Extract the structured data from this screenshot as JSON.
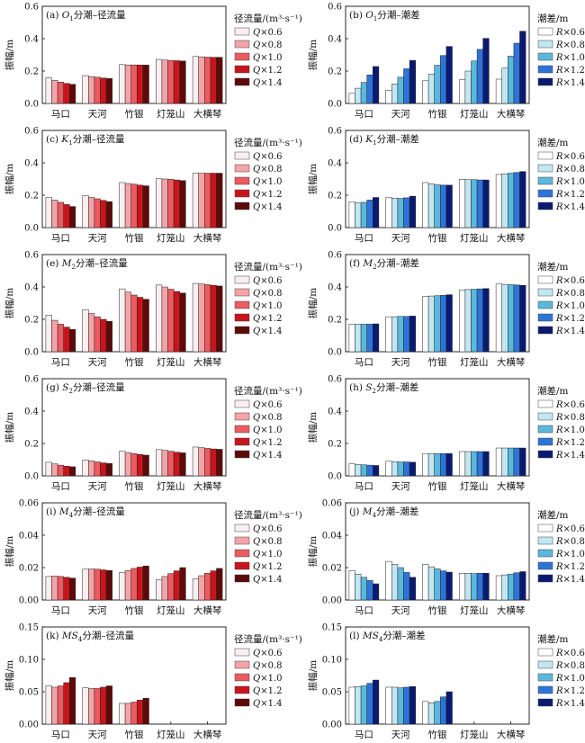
{
  "colors": {
    "discharge": [
      "#f9eef0",
      "#f5a3a8",
      "#eb5b60",
      "#c8141c",
      "#5c0a0a"
    ],
    "tide": [
      "#ffffff",
      "#c2e7f3",
      "#5ab8dc",
      "#2e74d8",
      "#0a1a70"
    ]
  },
  "chart_data": [
    {
      "type": "bar",
      "panel_id": "a",
      "title": {
        "prefix": "(a) ",
        "sym": "O",
        "sub": "1",
        "text": "分潮–径流量"
      },
      "ylabel": "振幅/m",
      "ylim": [
        0,
        0.6
      ],
      "yticks": [
        "0.0",
        "0.2",
        "0.4",
        "0.6"
      ],
      "categories": [
        "马口",
        "天河",
        "竹银",
        "灯笼山",
        "大横琴"
      ],
      "legend_title": "径流量/(m³·s⁻¹)",
      "legend_prefix": "Q×",
      "legend_values": [
        "0.6",
        "0.8",
        "1.0",
        "1.2",
        "1.4"
      ],
      "palette": "discharge",
      "series": [
        {
          "values": [
            0.158,
            0.172,
            0.24,
            0.272,
            0.29
          ]
        },
        {
          "values": [
            0.142,
            0.166,
            0.238,
            0.268,
            0.288
          ]
        },
        {
          "values": [
            0.132,
            0.162,
            0.238,
            0.266,
            0.286
          ]
        },
        {
          "values": [
            0.124,
            0.157,
            0.237,
            0.264,
            0.285
          ]
        },
        {
          "values": [
            0.118,
            0.154,
            0.237,
            0.262,
            0.285
          ]
        }
      ]
    },
    {
      "type": "bar",
      "panel_id": "b",
      "title": {
        "prefix": "(b) ",
        "sym": "O",
        "sub": "1",
        "text": "分潮–潮差"
      },
      "ylabel": "振幅/m",
      "ylim": [
        0,
        0.6
      ],
      "yticks": [
        "0.0",
        "0.2",
        "0.4",
        "0.6"
      ],
      "categories": [
        "马口",
        "天河",
        "竹银",
        "灯笼山",
        "大横琴"
      ],
      "legend_title": "潮差/m",
      "legend_prefix": "R×",
      "legend_values": [
        "0.6",
        "0.8",
        "1.0",
        "1.2",
        "1.4"
      ],
      "palette": "tide",
      "series": [
        {
          "values": [
            0.062,
            0.082,
            0.14,
            0.146,
            0.15
          ]
        },
        {
          "values": [
            0.094,
            0.12,
            0.182,
            0.2,
            0.218
          ]
        },
        {
          "values": [
            0.13,
            0.162,
            0.236,
            0.262,
            0.292
          ]
        },
        {
          "values": [
            0.176,
            0.214,
            0.296,
            0.334,
            0.372
          ]
        },
        {
          "values": [
            0.228,
            0.266,
            0.352,
            0.402,
            0.446
          ]
        }
      ]
    },
    {
      "type": "bar",
      "panel_id": "c",
      "title": {
        "prefix": "(c) ",
        "sym": "K",
        "sub": "1",
        "text": "分潮–径流量"
      },
      "ylabel": "振幅/m",
      "ylim": [
        0,
        0.6
      ],
      "yticks": [
        "0.0",
        "0.2",
        "0.4",
        "0.6"
      ],
      "categories": [
        "马口",
        "天河",
        "竹银",
        "灯笼山",
        "大横琴"
      ],
      "legend_title": "径流量/(m³·s⁻¹)",
      "legend_prefix": "Q×",
      "legend_values": [
        "0.6",
        "0.8",
        "1.0",
        "1.2",
        "1.4"
      ],
      "palette": "discharge",
      "series": [
        {
          "values": [
            0.186,
            0.198,
            0.278,
            0.302,
            0.336
          ]
        },
        {
          "values": [
            0.17,
            0.186,
            0.272,
            0.3,
            0.336
          ]
        },
        {
          "values": [
            0.156,
            0.178,
            0.268,
            0.298,
            0.336
          ]
        },
        {
          "values": [
            0.142,
            0.168,
            0.262,
            0.294,
            0.336
          ]
        },
        {
          "values": [
            0.13,
            0.16,
            0.258,
            0.29,
            0.336
          ]
        }
      ]
    },
    {
      "type": "bar",
      "panel_id": "d",
      "title": {
        "prefix": "(d) ",
        "sym": "K",
        "sub": "1",
        "text": "分潮–潮差"
      },
      "ylabel": "振幅/m",
      "ylim": [
        0,
        0.6
      ],
      "yticks": [
        "0.0",
        "0.2",
        "0.4",
        "0.6"
      ],
      "categories": [
        "马口",
        "天河",
        "竹银",
        "灯笼山",
        "大横琴"
      ],
      "legend_title": "潮差/m",
      "legend_prefix": "R×",
      "legend_values": [
        "0.6",
        "0.8",
        "1.0",
        "1.2",
        "1.4"
      ],
      "palette": "tide",
      "series": [
        {
          "values": [
            0.16,
            0.186,
            0.278,
            0.298,
            0.328
          ]
        },
        {
          "values": [
            0.152,
            0.182,
            0.27,
            0.296,
            0.332
          ]
        },
        {
          "values": [
            0.156,
            0.18,
            0.264,
            0.296,
            0.336
          ]
        },
        {
          "values": [
            0.17,
            0.184,
            0.262,
            0.294,
            0.34
          ]
        },
        {
          "values": [
            0.186,
            0.194,
            0.262,
            0.294,
            0.346
          ]
        }
      ]
    },
    {
      "type": "bar",
      "panel_id": "e",
      "title": {
        "prefix": "(e) ",
        "sym": "M",
        "sub": "2",
        "text": "分潮–径流量"
      },
      "ylabel": "振幅/m",
      "ylim": [
        0,
        0.6
      ],
      "yticks": [
        "0.0",
        "0.2",
        "0.4",
        "0.6"
      ],
      "categories": [
        "马口",
        "天河",
        "竹银",
        "灯笼山",
        "大横琴"
      ],
      "legend_title": "径流量/(m³·s⁻¹)",
      "legend_prefix": "Q×",
      "legend_values": [
        "0.6",
        "0.8",
        "1.0",
        "1.2",
        "1.4"
      ],
      "palette": "discharge",
      "series": [
        {
          "values": [
            0.226,
            0.26,
            0.388,
            0.412,
            0.422
          ]
        },
        {
          "values": [
            0.194,
            0.236,
            0.368,
            0.4,
            0.418
          ]
        },
        {
          "values": [
            0.17,
            0.216,
            0.35,
            0.386,
            0.414
          ]
        },
        {
          "values": [
            0.152,
            0.2,
            0.336,
            0.372,
            0.41
          ]
        },
        {
          "values": [
            0.138,
            0.188,
            0.324,
            0.362,
            0.406
          ]
        }
      ]
    },
    {
      "type": "bar",
      "panel_id": "f",
      "title": {
        "prefix": "(f) ",
        "sym": "M",
        "sub": "2",
        "text": "分潮–潮差"
      },
      "ylabel": "振幅/m",
      "ylim": [
        0,
        0.6
      ],
      "yticks": [
        "0.0",
        "0.2",
        "0.4",
        "0.6"
      ],
      "categories": [
        "马口",
        "天河",
        "竹银",
        "灯笼山",
        "大横琴"
      ],
      "legend_title": "潮差/m",
      "legend_prefix": "R×",
      "legend_values": [
        "0.6",
        "0.8",
        "1.0",
        "1.2",
        "1.4"
      ],
      "palette": "tide",
      "series": [
        {
          "values": [
            0.17,
            0.216,
            0.342,
            0.382,
            0.418
          ]
        },
        {
          "values": [
            0.17,
            0.216,
            0.344,
            0.384,
            0.416
          ]
        },
        {
          "values": [
            0.17,
            0.218,
            0.346,
            0.386,
            0.414
          ]
        },
        {
          "values": [
            0.17,
            0.218,
            0.348,
            0.388,
            0.412
          ]
        },
        {
          "values": [
            0.172,
            0.22,
            0.352,
            0.39,
            0.41
          ]
        }
      ]
    },
    {
      "type": "bar",
      "panel_id": "g",
      "title": {
        "prefix": "(g) ",
        "sym": "S",
        "sub": "2",
        "text": "分潮–径流量"
      },
      "ylabel": "振幅/m",
      "ylim": [
        0,
        0.6
      ],
      "yticks": [
        "0.0",
        "0.2",
        "0.4",
        "0.6"
      ],
      "categories": [
        "马口",
        "天河",
        "竹银",
        "灯笼山",
        "大横琴"
      ],
      "legend_title": "径流量/(m³·s⁻¹)",
      "legend_prefix": "Q×",
      "legend_values": [
        "0.6",
        "0.8",
        "1.0",
        "1.2",
        "1.4"
      ],
      "palette": "discharge",
      "series": [
        {
          "values": [
            0.084,
            0.098,
            0.152,
            0.162,
            0.178
          ]
        },
        {
          "values": [
            0.074,
            0.092,
            0.144,
            0.158,
            0.174
          ]
        },
        {
          "values": [
            0.066,
            0.086,
            0.138,
            0.152,
            0.17
          ]
        },
        {
          "values": [
            0.06,
            0.08,
            0.132,
            0.146,
            0.166
          ]
        },
        {
          "values": [
            0.056,
            0.076,
            0.128,
            0.142,
            0.164
          ]
        }
      ]
    },
    {
      "type": "bar",
      "panel_id": "h",
      "title": {
        "prefix": "(h) ",
        "sym": "S",
        "sub": "2",
        "text": "分潮–潮差"
      },
      "ylabel": "振幅/m",
      "ylim": [
        0,
        0.6
      ],
      "yticks": [
        "0.0",
        "0.2",
        "0.4",
        "0.6"
      ],
      "categories": [
        "马口",
        "天河",
        "竹银",
        "灯笼山",
        "大横琴"
      ],
      "legend_title": "潮差/m",
      "legend_prefix": "R×",
      "legend_values": [
        "0.6",
        "0.8",
        "1.0",
        "1.2",
        "1.4"
      ],
      "palette": "tide",
      "series": [
        {
          "values": [
            0.074,
            0.09,
            0.138,
            0.15,
            0.172
          ]
        },
        {
          "values": [
            0.07,
            0.088,
            0.138,
            0.15,
            0.172
          ]
        },
        {
          "values": [
            0.068,
            0.086,
            0.138,
            0.15,
            0.172
          ]
        },
        {
          "values": [
            0.066,
            0.086,
            0.138,
            0.15,
            0.172
          ]
        },
        {
          "values": [
            0.064,
            0.084,
            0.138,
            0.15,
            0.172
          ]
        }
      ]
    },
    {
      "type": "bar",
      "panel_id": "i",
      "title": {
        "prefix": "(i) ",
        "sym": "M",
        "sub": "4",
        "text": "分潮–径流量"
      },
      "ylabel": "振幅/m",
      "ylim": [
        0,
        0.06
      ],
      "yticks": [
        "0.00",
        "0.02",
        "0.04",
        "0.06"
      ],
      "categories": [
        "马口",
        "天河",
        "竹银",
        "灯笼山",
        "大横琴"
      ],
      "legend_title": "径流量/(m³·s⁻¹)",
      "legend_prefix": "Q×",
      "legend_values": [
        "0.6",
        "0.8",
        "1.0",
        "1.2",
        "1.4"
      ],
      "palette": "discharge",
      "series": [
        {
          "values": [
            0.0145,
            0.019,
            0.017,
            0.0125,
            0.013
          ]
        },
        {
          "values": [
            0.0148,
            0.0192,
            0.0182,
            0.0145,
            0.015
          ]
        },
        {
          "values": [
            0.0145,
            0.019,
            0.0195,
            0.0163,
            0.0165
          ]
        },
        {
          "values": [
            0.014,
            0.0186,
            0.0203,
            0.018,
            0.018
          ]
        },
        {
          "values": [
            0.0135,
            0.0182,
            0.021,
            0.02,
            0.0195
          ]
        }
      ]
    },
    {
      "type": "bar",
      "panel_id": "j",
      "title": {
        "prefix": "(j) ",
        "sym": "M",
        "sub": "4",
        "text": "分潮–潮差"
      },
      "ylabel": "振幅/m",
      "ylim": [
        0,
        0.06
      ],
      "yticks": [
        "0.00",
        "0.02",
        "0.04",
        "0.06"
      ],
      "categories": [
        "马口",
        "天河",
        "竹银",
        "灯笼山",
        "大横琴"
      ],
      "legend_title": "潮差/m",
      "legend_prefix": "R×",
      "legend_values": [
        "0.6",
        "0.8",
        "1.0",
        "1.2",
        "1.4"
      ],
      "palette": "tide",
      "series": [
        {
          "values": [
            0.0182,
            0.0238,
            0.022,
            0.0165,
            0.015
          ]
        },
        {
          "values": [
            0.016,
            0.022,
            0.0205,
            0.0165,
            0.0155
          ]
        },
        {
          "values": [
            0.014,
            0.02,
            0.0192,
            0.0163,
            0.016
          ]
        },
        {
          "values": [
            0.012,
            0.017,
            0.018,
            0.0165,
            0.0168
          ]
        },
        {
          "values": [
            0.01,
            0.014,
            0.0172,
            0.0165,
            0.0175
          ]
        }
      ]
    },
    {
      "type": "bar",
      "panel_id": "k",
      "title": {
        "prefix": "(k) ",
        "sym": "MS",
        "sub": "4",
        "text": "分潮–径流量"
      },
      "ylabel": "振幅/m",
      "ylim": [
        0,
        0.15
      ],
      "yticks": [
        "0.00",
        "0.05",
        "0.10",
        "0.15"
      ],
      "categories": [
        "马口",
        "天河",
        "竹银",
        "灯笼山",
        "大横琴"
      ],
      "legend_title": "径流量/(m³·s⁻¹)",
      "legend_prefix": "Q×",
      "legend_values": [
        "0.6",
        "0.8",
        "1.0",
        "1.2",
        "1.4"
      ],
      "palette": "discharge",
      "series": [
        {
          "values": [
            0.059,
            0.056,
            0.032,
            0,
            0
          ]
        },
        {
          "values": [
            0.057,
            0.055,
            0.032,
            0,
            0
          ]
        },
        {
          "values": [
            0.059,
            0.055,
            0.034,
            0,
            0
          ]
        },
        {
          "values": [
            0.064,
            0.057,
            0.037,
            0,
            0
          ]
        },
        {
          "values": [
            0.072,
            0.059,
            0.04,
            0,
            0
          ]
        }
      ]
    },
    {
      "type": "bar",
      "panel_id": "l",
      "title": {
        "prefix": "(l) ",
        "sym": "MS",
        "sub": "4",
        "text": "分潮–潮差"
      },
      "ylabel": "振幅/m",
      "ylim": [
        0,
        0.15
      ],
      "yticks": [
        "0.00",
        "0.05",
        "0.10",
        "0.15"
      ],
      "categories": [
        "马口",
        "天河",
        "竹银",
        "灯笼山",
        "大横琴"
      ],
      "legend_title": "潮差/m",
      "legend_prefix": "R×",
      "legend_values": [
        "0.6",
        "0.8",
        "1.0",
        "1.2",
        "1.4"
      ],
      "palette": "tide",
      "series": [
        {
          "values": [
            0.057,
            0.057,
            0.035,
            0,
            0
          ]
        },
        {
          "values": [
            0.058,
            0.057,
            0.033,
            0,
            0
          ]
        },
        {
          "values": [
            0.059,
            0.056,
            0.035,
            0,
            0
          ]
        },
        {
          "values": [
            0.063,
            0.057,
            0.042,
            0,
            0
          ]
        },
        {
          "values": [
            0.068,
            0.058,
            0.05,
            0,
            0
          ]
        }
      ]
    }
  ]
}
